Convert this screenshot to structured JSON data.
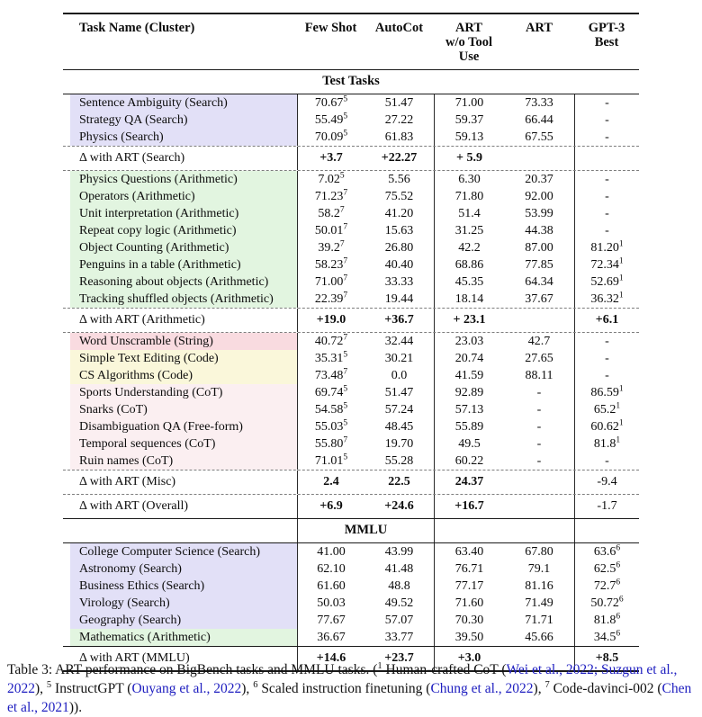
{
  "table": {
    "columns": [
      {
        "label": "Task Name (Cluster)"
      },
      {
        "label": "Few Shot"
      },
      {
        "label": "AutoCot"
      },
      {
        "label": "ART\nw/o Tool Use"
      },
      {
        "label": "ART"
      },
      {
        "label": "GPT-3\nBest"
      }
    ],
    "bands": {
      "test": "Test Tasks",
      "mmlu": "MMLU"
    },
    "colors": {
      "cluster_search": "#e2e0f7",
      "cluster_arithmetic": "#e2f5e0",
      "cluster_string": "#f9dbe0",
      "cluster_code": "#faf7da",
      "cluster_cot": "#fbeff1",
      "link_blue": "#2020c0"
    },
    "test_rows": [
      {
        "n": "Sentence Ambiguity (Search)",
        "bg": "lav",
        "v": [
          "70.67^5",
          "51.47",
          "71.00",
          "73.33",
          "-"
        ]
      },
      {
        "n": "Strategy QA (Search)",
        "bg": "lav",
        "v": [
          "55.49^5",
          "27.22",
          "59.37",
          "66.44",
          "-"
        ]
      },
      {
        "n": "Physics (Search)",
        "bg": "lav",
        "v": [
          "70.09^5",
          "61.83",
          "59.13",
          "67.55",
          "-"
        ]
      },
      {
        "n": "Δ with ART (Search)",
        "d": true,
        "bt": "d",
        "v": [
          "+3.7",
          "+22.27",
          "+ 5.9",
          "",
          ""
        ]
      },
      {
        "n": "Physics Questions (Arithmetic)",
        "bg": "grn",
        "bt": "d",
        "v": [
          "7.02^5",
          "5.56",
          "6.30",
          "20.37",
          "-"
        ]
      },
      {
        "n": "Operators (Arithmetic)",
        "bg": "grn",
        "v": [
          "71.23^7",
          "75.52",
          "71.80",
          "92.00",
          "-"
        ]
      },
      {
        "n": "Unit interpretation (Arithmetic)",
        "bg": "grn",
        "v": [
          "58.2^7",
          "41.20",
          "51.4",
          "53.99",
          "-"
        ]
      },
      {
        "n": "Repeat copy logic (Arithmetic)",
        "bg": "grn",
        "v": [
          "50.01^7",
          "15.63",
          "31.25",
          "44.38",
          "-"
        ]
      },
      {
        "n": "Object Counting (Arithmetic)",
        "bg": "grn",
        "v": [
          "39.2^7",
          "26.80",
          "42.2",
          "87.00",
          "81.20^1"
        ]
      },
      {
        "n": "Penguins in a table (Arithmetic)",
        "bg": "grn",
        "v": [
          "58.23^7",
          "40.40",
          "68.86",
          "77.85",
          "72.34^1"
        ]
      },
      {
        "n": "Reasoning about objects (Arithmetic)",
        "bg": "grn",
        "v": [
          "71.00^7",
          "33.33",
          "45.35",
          "64.34",
          "52.69^1"
        ]
      },
      {
        "n": "Tracking shuffled objects (Arithmetic)",
        "bg": "grn",
        "v": [
          "22.39^7",
          "19.44",
          "18.14",
          "37.67",
          "36.32^1"
        ]
      },
      {
        "n": "Δ with ART (Arithmetic)",
        "d": true,
        "bt": "d",
        "v": [
          "+19.0",
          "+36.7",
          "+ 23.1",
          "",
          "+6.1"
        ]
      },
      {
        "n": "Word Unscramble (String)",
        "bg": "pnk",
        "bt": "d",
        "v": [
          "40.72^7",
          "32.44",
          "23.03",
          "42.7",
          "-"
        ]
      },
      {
        "n": "Simple Text Editing (Code)",
        "bg": "yel",
        "v": [
          "35.31^5",
          "30.21",
          "20.74",
          "27.65",
          "-"
        ]
      },
      {
        "n": "CS Algorithms (Code)",
        "bg": "yel",
        "v": [
          "73.48^7",
          "0.0",
          "41.59",
          "88.11",
          "-"
        ]
      },
      {
        "n": "Sports Understanding (CoT)",
        "bg": "lpk",
        "v": [
          "69.74^5",
          "51.47",
          "92.89",
          "-",
          "86.59^1"
        ]
      },
      {
        "n": "Snarks (CoT)",
        "bg": "lpk",
        "v": [
          "54.58^5",
          "57.24",
          "57.13",
          "-",
          "65.2^1"
        ]
      },
      {
        "n": "Disambiguation QA (Free-form)",
        "bg": "lpk",
        "v": [
          "55.03^5",
          "48.45",
          "55.89",
          "-",
          "60.62^1"
        ]
      },
      {
        "n": "Temporal sequences (CoT)",
        "bg": "lpk",
        "v": [
          "55.80^7",
          "19.70",
          "49.5",
          "-",
          "81.8^1"
        ]
      },
      {
        "n": "Ruin names (CoT)",
        "bg": "lpk",
        "v": [
          "71.01^5",
          "55.28",
          "60.22",
          "-",
          "-"
        ]
      },
      {
        "n": "Δ with ART (Misc)",
        "d": true,
        "bt": "d",
        "v": [
          "2.4",
          "22.5",
          "24.37",
          "",
          "-9.4"
        ],
        "plain": [
          4
        ]
      },
      {
        "n": "Δ with ART (Overall)",
        "d": true,
        "bt": "d",
        "v": [
          "+6.9",
          "+24.6",
          "+16.7",
          "",
          "-1.7"
        ],
        "plain": [
          4
        ]
      }
    ],
    "mmlu_rows": [
      {
        "n": "College Computer Science (Search)",
        "bg": "lav",
        "v": [
          "41.00",
          "43.99",
          "63.40",
          "67.80",
          "63.6^6"
        ]
      },
      {
        "n": "Astronomy (Search)",
        "bg": "lav",
        "v": [
          "62.10",
          "41.48",
          "76.71",
          "79.1",
          "62.5^6"
        ]
      },
      {
        "n": "Business Ethics (Search)",
        "bg": "lav",
        "v": [
          "61.60",
          "48.8",
          "77.17",
          "81.16",
          "72.7^6"
        ]
      },
      {
        "n": "Virology (Search)",
        "bg": "lav",
        "v": [
          "50.03",
          "49.52",
          "71.60",
          "71.49",
          "50.72^6"
        ]
      },
      {
        "n": "Geography (Search)",
        "bg": "lav",
        "v": [
          "77.67",
          "57.07",
          "70.30",
          "71.71",
          "81.8^6"
        ]
      },
      {
        "n": "Mathematics (Arithmetic)",
        "bg": "grn",
        "v": [
          "36.67",
          "33.77",
          "39.50",
          "45.66",
          "34.5^6"
        ]
      },
      {
        "n": "Δ with ART (MMLU)",
        "d": true,
        "bt": "s",
        "v": [
          "+14.6",
          "+23.7",
          "+3.0",
          "",
          "+8.5"
        ]
      }
    ]
  },
  "caption": {
    "segments": [
      {
        "t": "Table 3: ART performance on BigBench tasks and MMLU tasks. ("
      },
      {
        "t": "1",
        "sup": true
      },
      {
        "t": " Human-crafted CoT ("
      },
      {
        "t": "Wei et al., 2022;",
        "link": true
      },
      {
        "t": " "
      },
      {
        "t": "Suzgun et al., 2022",
        "link": true
      },
      {
        "t": "), "
      },
      {
        "t": "5",
        "sup": true
      },
      {
        "t": " InstructGPT ("
      },
      {
        "t": "Ouyang et al., 2022",
        "link": true
      },
      {
        "t": "), "
      },
      {
        "t": "6",
        "sup": true
      },
      {
        "t": " Scaled instruction finetuning ("
      },
      {
        "t": "Chung et al., 2022",
        "link": true
      },
      {
        "t": "), "
      },
      {
        "t": "7",
        "sup": true
      },
      {
        "t": " Code-davinci-002 ("
      },
      {
        "t": "Chen et al., 2021",
        "link": true
      },
      {
        "t": "))."
      }
    ]
  }
}
